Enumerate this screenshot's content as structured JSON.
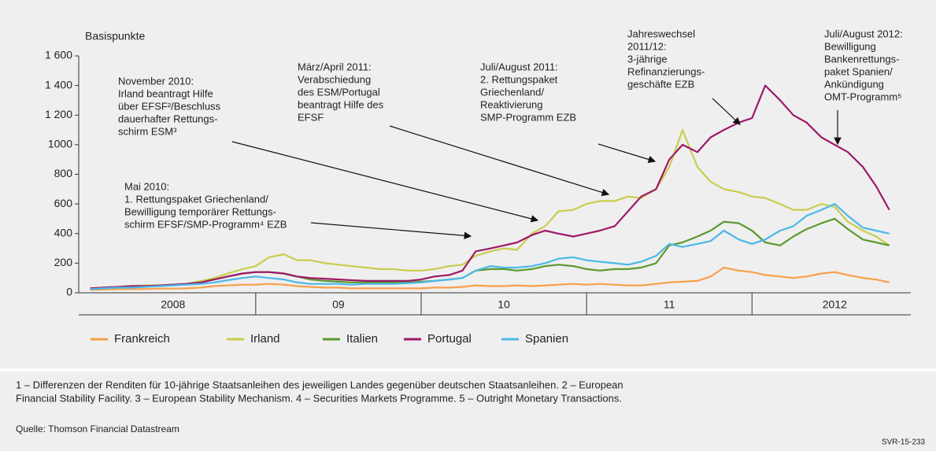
{
  "chart_data": {
    "type": "line",
    "y_label": "Basispunkte",
    "ylim": [
      0,
      1600
    ],
    "yticks": [
      0,
      200,
      400,
      600,
      800,
      1000,
      {
        "value": 1200,
        "label": "1 200"
      },
      {
        "value": 1400,
        "label": "1 400"
      },
      {
        "value": 1600,
        "label": "1 600"
      }
    ],
    "xlim": [
      2007.93,
      2012.96
    ],
    "xticks": [
      {
        "value": 2008.5,
        "label": "2008"
      },
      {
        "value": 2009.5,
        "label": "09"
      },
      {
        "value": 2010.5,
        "label": "10"
      },
      {
        "value": 2011.5,
        "label": "11"
      },
      {
        "value": 2012.5,
        "label": "2012"
      }
    ],
    "x": [
      2008,
      2008.08,
      2008.17,
      2008.25,
      2008.33,
      2008.42,
      2008.5,
      2008.58,
      2008.67,
      2008.75,
      2008.83,
      2008.92,
      2009,
      2009.08,
      2009.17,
      2009.25,
      2009.33,
      2009.42,
      2009.5,
      2009.58,
      2009.67,
      2009.75,
      2009.83,
      2009.92,
      2010,
      2010.08,
      2010.17,
      2010.25,
      2010.33,
      2010.42,
      2010.5,
      2010.58,
      2010.67,
      2010.75,
      2010.83,
      2010.92,
      2011,
      2011.08,
      2011.17,
      2011.25,
      2011.33,
      2011.42,
      2011.5,
      2011.58,
      2011.67,
      2011.75,
      2011.83,
      2011.92,
      2012,
      2012.08,
      2012.17,
      2012.25,
      2012.33,
      2012.42,
      2012.5,
      2012.58,
      2012.67,
      2012.75,
      2012.83
    ],
    "series": [
      {
        "name": "Frankreich",
        "color": "#f7a04a",
        "values": [
          20,
          22,
          25,
          25,
          25,
          28,
          28,
          30,
          35,
          45,
          50,
          55,
          55,
          60,
          55,
          45,
          40,
          35,
          35,
          30,
          30,
          30,
          30,
          30,
          30,
          35,
          35,
          40,
          50,
          45,
          45,
          50,
          45,
          50,
          55,
          60,
          55,
          60,
          55,
          50,
          50,
          60,
          70,
          75,
          80,
          110,
          170,
          150,
          140,
          120,
          110,
          100,
          110,
          130,
          140,
          120,
          100,
          90,
          70
        ]
      },
      {
        "name": "Irland",
        "color": "#c9cd4c",
        "values": [
          30,
          35,
          40,
          45,
          50,
          50,
          55,
          60,
          80,
          100,
          130,
          160,
          180,
          240,
          260,
          220,
          220,
          200,
          190,
          180,
          170,
          160,
          160,
          150,
          150,
          160,
          180,
          190,
          250,
          280,
          300,
          290,
          400,
          450,
          550,
          560,
          600,
          620,
          620,
          650,
          640,
          700,
          850,
          1100,
          850,
          750,
          700,
          680,
          650,
          640,
          600,
          560,
          560,
          600,
          580,
          480,
          420,
          380,
          320
        ]
      },
      {
        "name": "Italien",
        "color": "#5b9a2e",
        "values": [
          30,
          35,
          40,
          45,
          45,
          50,
          55,
          60,
          70,
          90,
          110,
          130,
          140,
          140,
          130,
          110,
          90,
          80,
          75,
          70,
          70,
          70,
          70,
          70,
          75,
          80,
          90,
          100,
          150,
          160,
          160,
          150,
          160,
          180,
          190,
          180,
          160,
          150,
          160,
          160,
          170,
          200,
          320,
          340,
          380,
          420,
          480,
          470,
          420,
          340,
          320,
          380,
          430,
          470,
          500,
          430,
          360,
          340,
          320
        ]
      },
      {
        "name": "Portugal",
        "color": "#9e1868",
        "values": [
          30,
          35,
          40,
          45,
          45,
          50,
          55,
          60,
          70,
          90,
          110,
          130,
          140,
          140,
          130,
          110,
          100,
          95,
          90,
          85,
          80,
          80,
          80,
          80,
          90,
          110,
          120,
          150,
          280,
          300,
          320,
          340,
          390,
          420,
          400,
          380,
          400,
          420,
          450,
          550,
          650,
          700,
          900,
          1000,
          950,
          1050,
          1100,
          1150,
          1180,
          1400,
          1300,
          1200,
          1150,
          1050,
          1000,
          950,
          850,
          720,
          560
        ]
      },
      {
        "name": "Spanien",
        "color": "#4cb8e8",
        "values": [
          25,
          30,
          35,
          35,
          40,
          45,
          50,
          55,
          60,
          70,
          85,
          100,
          110,
          100,
          90,
          70,
          60,
          60,
          60,
          55,
          60,
          60,
          60,
          65,
          70,
          80,
          90,
          100,
          150,
          180,
          170,
          170,
          180,
          200,
          230,
          240,
          220,
          210,
          200,
          190,
          210,
          250,
          330,
          310,
          330,
          350,
          420,
          360,
          330,
          360,
          420,
          450,
          520,
          560,
          600,
          520,
          440,
          420,
          400
        ]
      }
    ],
    "annotations": [
      {
        "lines": [
          "Mai 2010:",
          "1. Rettungspaket Griechenland/",
          "Bewilligung temporärer Rettungs-",
          "schirm EFSF/SMP-Programm⁴ EZB"
        ]
      },
      {
        "lines": [
          "November 2010:",
          "Irland beantragt Hilfe",
          "über EFSF²/Beschluss",
          "dauerhafter Rettungs-",
          "schirm ESM³"
        ]
      },
      {
        "lines": [
          "März/April 2011:",
          "Verabschiedung",
          "des ESM/Portugal",
          "beantragt Hilfe des",
          "EFSF"
        ]
      },
      {
        "lines": [
          "Juli/August 2011:",
          "2. Rettungspaket",
          "Griechenland/",
          "Reaktivierung",
          "SMP-Programm EZB"
        ]
      },
      {
        "lines": [
          "Jahreswechsel",
          "2011/12:",
          "3-jährige",
          "Refinanzierungs-",
          "geschäfte EZB"
        ]
      },
      {
        "lines": [
          "Juli/August 2012:",
          "Bewilligung",
          "Bankenrettungs-",
          "paket Spanien/",
          "Ankündigung",
          "OMT-Programm⁵"
        ]
      }
    ],
    "notes": [
      "1 – Differenzen der Renditen für 10-jährige Staatsanleihen des jeweiligen Landes gegenüber deutschen Staatsanleihen.  2 – European",
      "Financial Stability Facility.  3 – European Stability Mechanism.  4 – Securities Markets Programme.  5 – Outright Monetary Transactions."
    ],
    "source": "Quelle: Thomson Financial Datastream",
    "code": "SVR-15-233"
  }
}
